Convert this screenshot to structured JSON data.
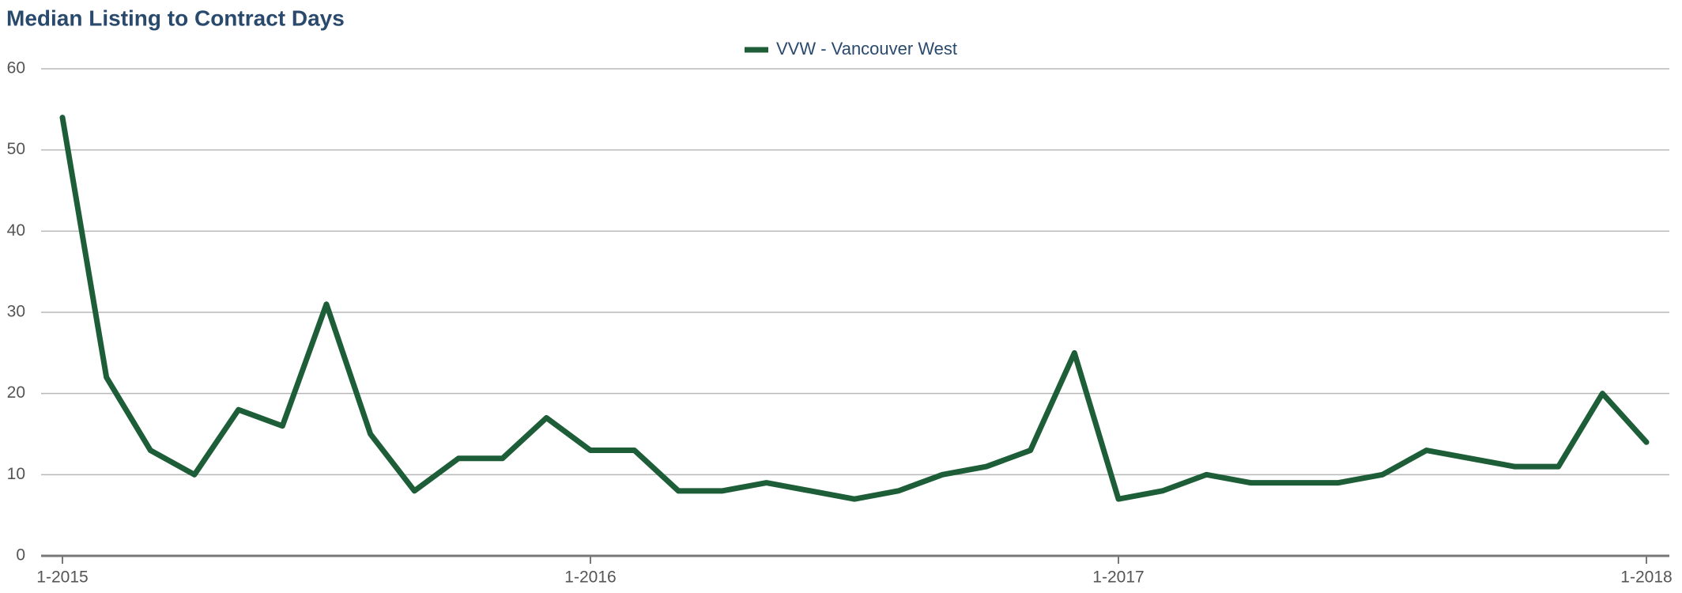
{
  "chart_data": {
    "type": "line",
    "title": "Median Listing to Contract Days",
    "categories": [
      "1-2015",
      null,
      null,
      null,
      null,
      null,
      null,
      null,
      null,
      null,
      null,
      null,
      "1-2016",
      null,
      null,
      null,
      null,
      null,
      null,
      null,
      null,
      null,
      null,
      null,
      "1-2017",
      null,
      null,
      null,
      null,
      null,
      null,
      null,
      null,
      null,
      null,
      null,
      "1-2018"
    ],
    "series": [
      {
        "name": "VVW - Vancouver West",
        "color": "#1d5e38",
        "values": [
          54,
          22,
          13,
          10,
          18,
          16,
          31,
          15,
          8,
          12,
          12,
          17,
          13,
          13,
          8,
          8,
          9,
          8,
          7,
          8,
          10,
          11,
          13,
          25,
          7,
          8,
          10,
          9,
          9,
          9,
          10,
          13,
          12,
          11,
          11,
          20,
          14
        ]
      }
    ],
    "ylim": [
      0,
      60
    ],
    "yticks": [
      0,
      10,
      20,
      30,
      40,
      50,
      60
    ],
    "grid": true,
    "legend": "top"
  }
}
